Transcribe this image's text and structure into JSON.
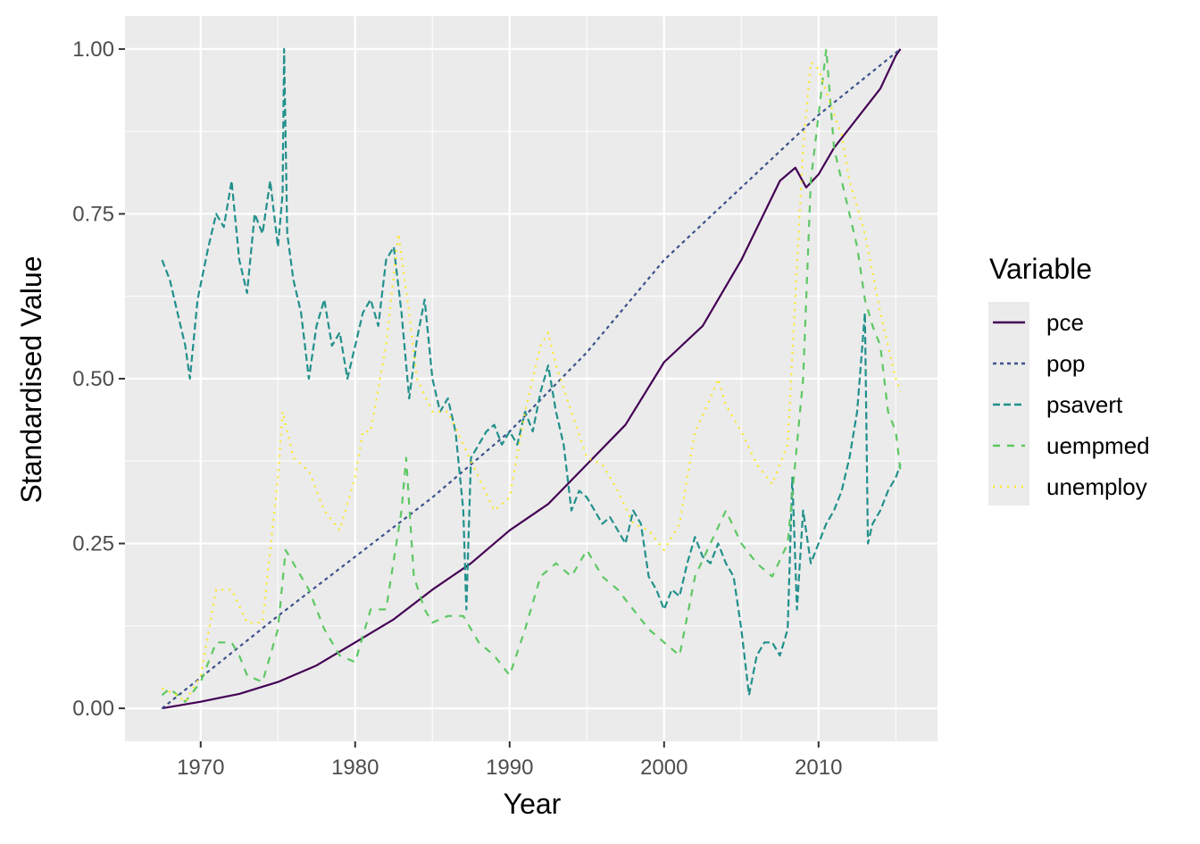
{
  "chart_data": {
    "type": "line",
    "title": "",
    "xlabel": "Year",
    "ylabel": "Standardised Value",
    "xlim": [
      1965.1,
      2017.7
    ],
    "ylim": [
      -0.05,
      1.05
    ],
    "xticks": [
      1970,
      1980,
      1990,
      2000,
      2010
    ],
    "xtick_labels": [
      "1970",
      "1980",
      "1990",
      "2000",
      "2010"
    ],
    "yticks": [
      0,
      0.25,
      0.5,
      0.75,
      1.0
    ],
    "ytick_labels": [
      "0.00",
      "0.25",
      "0.50",
      "0.75",
      "1.00"
    ],
    "grid": true,
    "legend": {
      "title": "Variable",
      "placement": "right"
    },
    "series": [
      {
        "name": "pce",
        "color": "#440154",
        "dash": "solid",
        "x": [
          1967.5,
          1970,
          1972.5,
          1975,
          1977.5,
          1980,
          1982.5,
          1985,
          1987.5,
          1990,
          1992.5,
          1995,
          1997.5,
          2000,
          2002.5,
          2005,
          2007.5,
          2008.5,
          2009.2,
          2010,
          2011,
          2012,
          2013,
          2014,
          2015,
          2015.3
        ],
        "y": [
          0,
          0.01,
          0.022,
          0.04,
          0.065,
          0.1,
          0.135,
          0.18,
          0.22,
          0.27,
          0.31,
          0.37,
          0.43,
          0.525,
          0.58,
          0.68,
          0.8,
          0.82,
          0.79,
          0.81,
          0.85,
          0.88,
          0.91,
          0.94,
          0.99,
          1.0
        ]
      },
      {
        "name": "pop",
        "color": "#3B528B",
        "dash": "22",
        "x": [
          1967.5,
          1975,
          1980,
          1985,
          1990,
          1995,
          2000,
          2005,
          2010,
          2015.3
        ],
        "y": [
          0,
          0.14,
          0.23,
          0.32,
          0.42,
          0.54,
          0.68,
          0.79,
          0.9,
          1.0
        ]
      },
      {
        "name": "psavert",
        "color": "#21908C",
        "dash": "42",
        "x": [
          1967.5,
          1968,
          1968.5,
          1969,
          1969.3,
          1969.8,
          1970.5,
          1971,
          1971.5,
          1972,
          1972.5,
          1973,
          1973.5,
          1974,
          1974.5,
          1975,
          1975.3,
          1975.4,
          1975.6,
          1976,
          1976.5,
          1977,
          1977.5,
          1978,
          1978.5,
          1979,
          1979.5,
          1980,
          1980.5,
          1981,
          1981.5,
          1982,
          1982.5,
          1983,
          1983.5,
          1984,
          1984.5,
          1985,
          1985.5,
          1986,
          1986.5,
          1987,
          1987.2,
          1987.5,
          1988,
          1988.5,
          1989,
          1989.5,
          1990,
          1990.5,
          1991,
          1991.5,
          1992,
          1992.5,
          1993,
          1993.5,
          1994,
          1994.5,
          1995,
          1995.5,
          1996,
          1996.5,
          1997,
          1997.5,
          1998,
          1998.5,
          1999,
          1999.5,
          2000,
          2000.5,
          2001,
          2001.5,
          2002,
          2002.5,
          2003,
          2003.5,
          2004,
          2004.5,
          2005,
          2005.5,
          2006,
          2006.5,
          2007,
          2007.5,
          2008,
          2008.3,
          2008.6,
          2009,
          2009.5,
          2010,
          2010.5,
          2011,
          2011.5,
          2012,
          2012.5,
          2013,
          2013.2,
          2013.5,
          2014,
          2014.5,
          2015,
          2015.3
        ],
        "y": [
          0.68,
          0.65,
          0.6,
          0.55,
          0.5,
          0.62,
          0.7,
          0.75,
          0.73,
          0.8,
          0.68,
          0.63,
          0.75,
          0.72,
          0.8,
          0.7,
          0.78,
          1.0,
          0.72,
          0.65,
          0.6,
          0.5,
          0.58,
          0.62,
          0.55,
          0.57,
          0.5,
          0.55,
          0.6,
          0.62,
          0.58,
          0.68,
          0.7,
          0.6,
          0.47,
          0.56,
          0.62,
          0.5,
          0.45,
          0.47,
          0.42,
          0.3,
          0.15,
          0.38,
          0.4,
          0.42,
          0.43,
          0.4,
          0.42,
          0.4,
          0.45,
          0.42,
          0.48,
          0.52,
          0.45,
          0.4,
          0.3,
          0.33,
          0.32,
          0.3,
          0.28,
          0.29,
          0.27,
          0.25,
          0.3,
          0.28,
          0.2,
          0.18,
          0.15,
          0.18,
          0.17,
          0.22,
          0.26,
          0.23,
          0.22,
          0.25,
          0.22,
          0.2,
          0.12,
          0.02,
          0.08,
          0.1,
          0.1,
          0.08,
          0.12,
          0.35,
          0.15,
          0.3,
          0.22,
          0.25,
          0.28,
          0.3,
          0.33,
          0.38,
          0.45,
          0.6,
          0.25,
          0.28,
          0.3,
          0.33,
          0.35,
          0.37
        ]
      },
      {
        "name": "uempmed",
        "color": "#5DC863",
        "dash": "44",
        "x": [
          1967.5,
          1968,
          1969,
          1970,
          1971,
          1972,
          1972.5,
          1973,
          1974,
          1975,
          1975.5,
          1976,
          1977,
          1978,
          1979,
          1980,
          1981,
          1982,
          1983,
          1983.3,
          1983.8,
          1984.5,
          1985,
          1986,
          1987,
          1988,
          1989,
          1990,
          1991,
          1992,
          1993,
          1994,
          1995,
          1996,
          1997,
          1998,
          1999,
          2000,
          2001,
          2002,
          2003,
          2004,
          2005,
          2006,
          2007,
          2008,
          2009,
          2009.5,
          2010,
          2010.5,
          2011,
          2011.5,
          2012,
          2012.5,
          2013,
          2013.5,
          2014,
          2014.5,
          2015,
          2015.3
        ],
        "y": [
          0.02,
          0.03,
          0.01,
          0.04,
          0.1,
          0.1,
          0.08,
          0.05,
          0.04,
          0.12,
          0.24,
          0.22,
          0.18,
          0.12,
          0.08,
          0.07,
          0.15,
          0.15,
          0.3,
          0.38,
          0.2,
          0.15,
          0.13,
          0.14,
          0.14,
          0.1,
          0.08,
          0.05,
          0.12,
          0.2,
          0.22,
          0.2,
          0.24,
          0.2,
          0.18,
          0.15,
          0.12,
          0.1,
          0.08,
          0.2,
          0.25,
          0.3,
          0.25,
          0.22,
          0.2,
          0.25,
          0.5,
          0.8,
          0.9,
          1.0,
          0.85,
          0.8,
          0.75,
          0.7,
          0.62,
          0.58,
          0.55,
          0.45,
          0.42,
          0.36
        ]
      },
      {
        "name": "unemploy",
        "color": "#FDE725",
        "dash": "13",
        "x": [
          1967.5,
          1968.5,
          1969,
          1970,
          1971,
          1972,
          1973,
          1974,
          1975,
          1975.3,
          1976,
          1977,
          1978,
          1979,
          1980,
          1980.5,
          1981,
          1982,
          1982.8,
          1983.5,
          1984,
          1985,
          1986,
          1987,
          1988,
          1989,
          1990,
          1991,
          1992,
          1992.5,
          1993,
          1994,
          1995,
          1996,
          1997,
          1998,
          1999,
          2000,
          2001,
          2002,
          2003,
          2003.5,
          2004,
          2005,
          2006,
          2007,
          2008,
          2009,
          2009.5,
          2010,
          2011,
          2011.5,
          2012,
          2013,
          2014,
          2015,
          2015.3
        ],
        "y": [
          0.03,
          0.02,
          0.01,
          0.05,
          0.18,
          0.18,
          0.13,
          0.13,
          0.35,
          0.45,
          0.38,
          0.36,
          0.3,
          0.27,
          0.35,
          0.42,
          0.42,
          0.55,
          0.72,
          0.6,
          0.5,
          0.45,
          0.45,
          0.4,
          0.35,
          0.3,
          0.32,
          0.45,
          0.55,
          0.57,
          0.52,
          0.45,
          0.38,
          0.37,
          0.33,
          0.28,
          0.27,
          0.24,
          0.28,
          0.42,
          0.47,
          0.5,
          0.46,
          0.42,
          0.37,
          0.34,
          0.4,
          0.85,
          0.98,
          0.97,
          0.9,
          0.87,
          0.8,
          0.72,
          0.6,
          0.5,
          0.48
        ]
      }
    ]
  }
}
